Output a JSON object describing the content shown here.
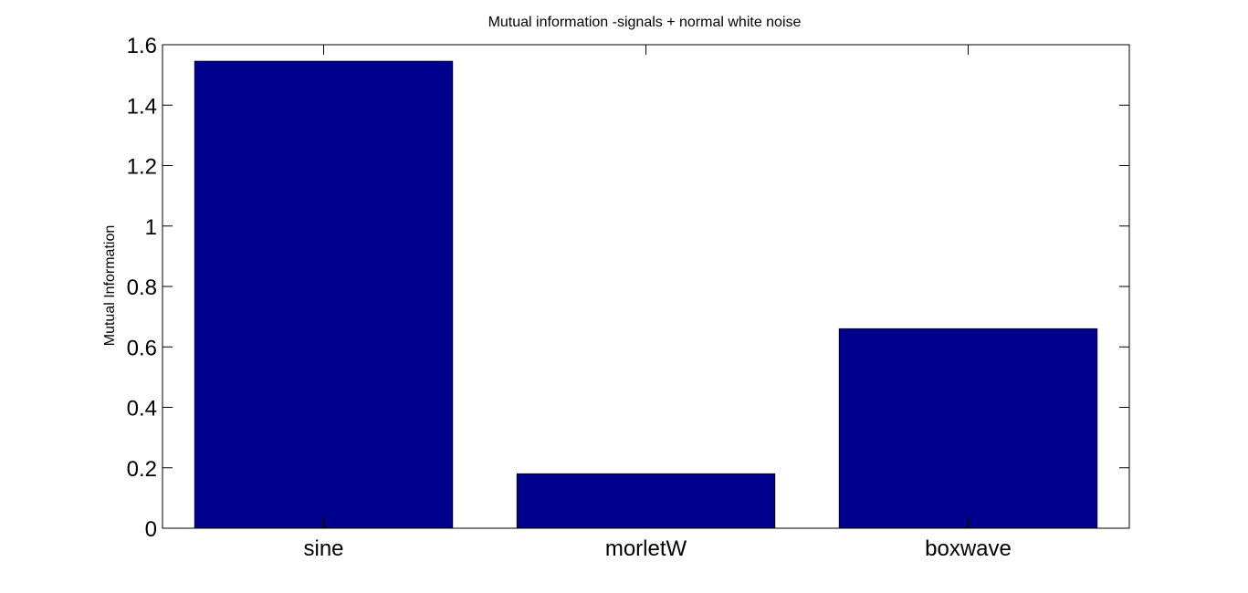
{
  "chart_data": {
    "type": "bar",
    "title": "Mutual information -signals + normal white noise",
    "xlabel": "",
    "ylabel": "Mutual Information",
    "categories": [
      "sine",
      "morletW",
      "boxwave"
    ],
    "values": [
      1.545,
      0.18,
      0.66
    ],
    "ylim": [
      0,
      1.6
    ],
    "yticks": [
      0,
      0.2,
      0.4,
      0.6,
      0.8,
      1,
      1.2,
      1.4,
      1.6
    ],
    "ytick_labels": [
      "0",
      "0.2",
      "0.4",
      "0.6",
      "0.8",
      "1",
      "1.2",
      "1.4",
      "1.6"
    ],
    "bar_color": "#00008f",
    "grid": false,
    "legend": "none"
  }
}
